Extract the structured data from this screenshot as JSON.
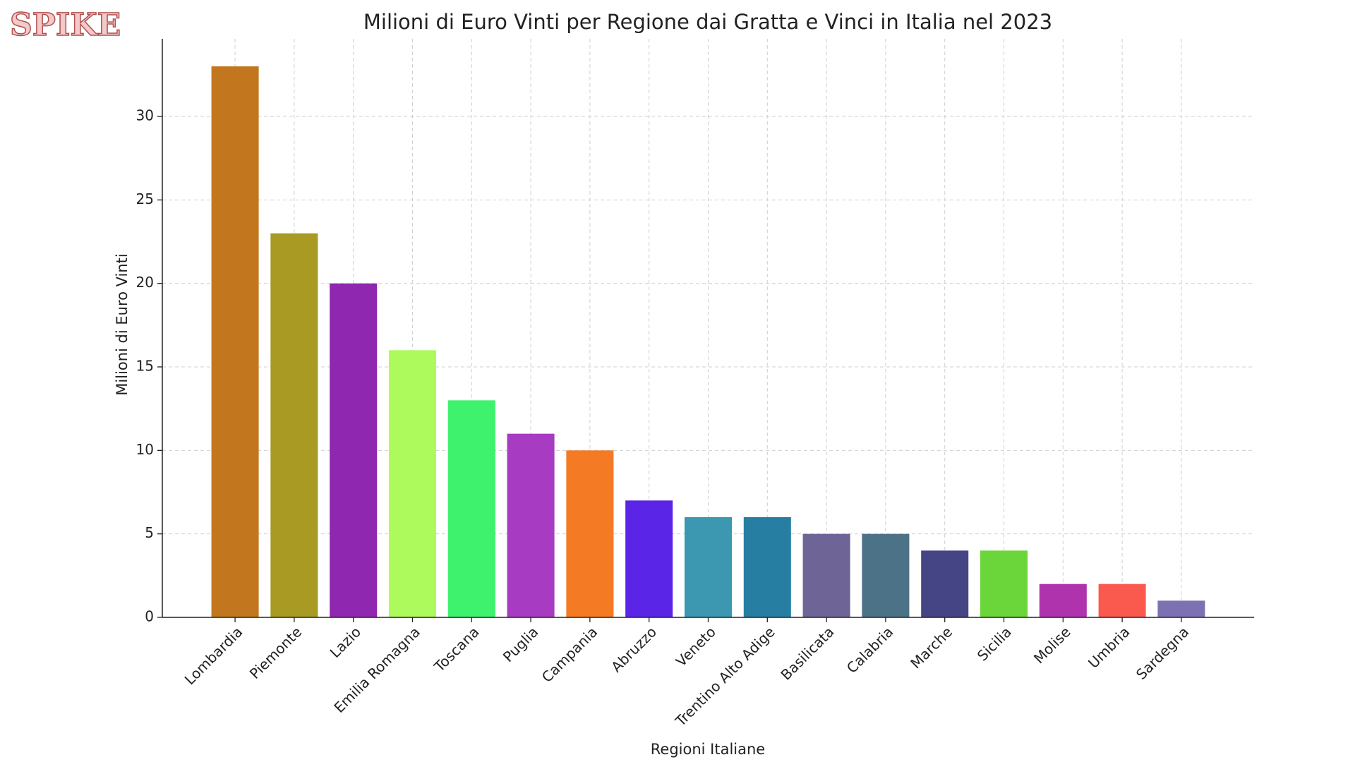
{
  "watermark": "SPIKE",
  "chart_data": {
    "type": "bar",
    "title": "Milioni di Euro Vinti per Regione dai Gratta e Vinci in Italia nel 2023",
    "x_label": "Regioni Italiane",
    "y_label": "Milioni di Euro Vinti",
    "categories": [
      "Lombardia",
      "Piemonte",
      "Lazio",
      "Emilia Romagna",
      "Toscana",
      "Puglia",
      "Campania",
      "Abruzzo",
      "Veneto",
      "Trentino Alto Adige",
      "Basilicata",
      "Calabria",
      "Marche",
      "Sicilia",
      "Molise",
      "Umbria",
      "Sardegna"
    ],
    "values": [
      33,
      23,
      20,
      16,
      13,
      11,
      10,
      7,
      6,
      6,
      5,
      5,
      4,
      4,
      2,
      2,
      1
    ],
    "colors": [
      "#c2771f",
      "#a89a22",
      "#9027b0",
      "#adfa5c",
      "#3ef26e",
      "#a73cc2",
      "#f47a24",
      "#5a25e6",
      "#3c97b0",
      "#267ea3",
      "#6e6496",
      "#4c7287",
      "#454485",
      "#6ad63a",
      "#ae33ad",
      "#fa5a4e",
      "#7d71b3"
    ],
    "ylim": [
      0,
      34.65
    ],
    "yticks": [
      0,
      5,
      10,
      15,
      20,
      25,
      30
    ],
    "grid": true
  }
}
